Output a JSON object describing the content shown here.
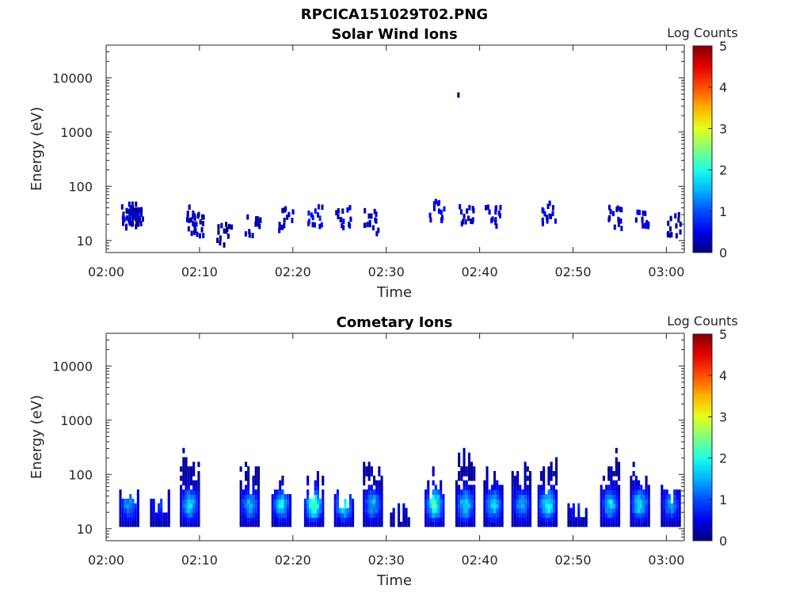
{
  "figure": {
    "title": "RPCICA151029T02.PNG",
    "background": "#ffffff"
  },
  "chart_data": [
    {
      "type": "heatmap",
      "title": "Solar Wind Ions",
      "xlabel": "Time",
      "ylabel": "Energy (eV)",
      "x_ticks": [
        "02:00",
        "02:10",
        "02:20",
        "02:30",
        "02:40",
        "02:50",
        "03:00"
      ],
      "y_ticks": [
        "10",
        "100",
        "1000",
        "10000"
      ],
      "y_scale": "log",
      "ylim": [
        6,
        40000
      ],
      "xlim": [
        "02:00",
        "03:02"
      ],
      "colorbar": {
        "label": "Log Counts",
        "ticks": [
          "0",
          "1",
          "2",
          "3",
          "4",
          "5"
        ],
        "range": [
          0,
          5
        ],
        "colormap": "jet"
      },
      "cells": [
        {
          "t": 1.8,
          "e": 28,
          "v": 0.3
        },
        {
          "t": 2.2,
          "e": 38,
          "v": 0.4
        },
        {
          "t": 2.5,
          "e": 22,
          "v": 0.3
        },
        {
          "t": 3.0,
          "e": 30,
          "v": 0.2
        },
        {
          "t": 8.7,
          "e": 25,
          "v": 0.3
        },
        {
          "t": 9.2,
          "e": 20,
          "v": 0.2
        },
        {
          "t": 12.2,
          "e": 13,
          "v": 0.1
        },
        {
          "t": 15.3,
          "e": 20,
          "v": 0.2
        },
        {
          "t": 18.8,
          "e": 25,
          "v": 0.3
        },
        {
          "t": 22.0,
          "e": 30,
          "v": 0.6
        },
        {
          "t": 25.0,
          "e": 25,
          "v": 0.4
        },
        {
          "t": 28.0,
          "e": 22,
          "v": 0.3
        },
        {
          "t": 35.0,
          "e": 35,
          "v": 0.5
        },
        {
          "t": 37.6,
          "e": 4800,
          "v": 0.1
        },
        {
          "t": 38.2,
          "e": 28,
          "v": 0.3
        },
        {
          "t": 41.0,
          "e": 25,
          "v": 0.4
        },
        {
          "t": 47.0,
          "e": 30,
          "v": 0.4
        },
        {
          "t": 54.2,
          "e": 25,
          "v": 0.3
        },
        {
          "t": 57.0,
          "e": 30,
          "v": 0.4
        },
        {
          "t": 60.5,
          "e": 20,
          "v": 0.2
        }
      ]
    },
    {
      "type": "heatmap",
      "title": "Cometary Ions",
      "xlabel": "Time",
      "ylabel": "Energy (eV)",
      "x_ticks": [
        "02:00",
        "02:10",
        "02:20",
        "02:30",
        "02:40",
        "02:50",
        "03:00"
      ],
      "y_ticks": [
        "10",
        "100",
        "1000",
        "10000"
      ],
      "y_scale": "log",
      "ylim": [
        6,
        40000
      ],
      "xlim": [
        "02:00",
        "03:02"
      ],
      "colorbar": {
        "label": "Log Counts",
        "ticks": [
          "0",
          "1",
          "2",
          "3",
          "4",
          "5"
        ],
        "range": [
          0,
          5
        ],
        "colormap": "jet"
      },
      "bursts": [
        {
          "t": 2.5,
          "peak": 1.3,
          "top": 80
        },
        {
          "t": 5.8,
          "peak": 0.8,
          "top": 60
        },
        {
          "t": 9.0,
          "peak": 1.7,
          "top": 400
        },
        {
          "t": 15.4,
          "peak": 1.5,
          "top": 180
        },
        {
          "t": 18.8,
          "peak": 1.7,
          "top": 150
        },
        {
          "t": 22.3,
          "peak": 2.3,
          "top": 120
        },
        {
          "t": 25.5,
          "peak": 2.0,
          "top": 80
        },
        {
          "t": 28.6,
          "peak": 1.5,
          "top": 220
        },
        {
          "t": 31.5,
          "peak": 0.4,
          "top": 30
        },
        {
          "t": 35.2,
          "peak": 2.2,
          "top": 150
        },
        {
          "t": 38.5,
          "peak": 1.8,
          "top": 350
        },
        {
          "t": 41.5,
          "peak": 1.7,
          "top": 200
        },
        {
          "t": 44.5,
          "peak": 1.4,
          "top": 180
        },
        {
          "t": 47.3,
          "peak": 2.0,
          "top": 200
        },
        {
          "t": 50.5,
          "peak": 0.8,
          "top": 40
        },
        {
          "t": 54.0,
          "peak": 1.7,
          "top": 300
        },
        {
          "t": 57.2,
          "peak": 1.8,
          "top": 250
        },
        {
          "t": 60.5,
          "peak": 1.3,
          "top": 80
        }
      ]
    }
  ]
}
